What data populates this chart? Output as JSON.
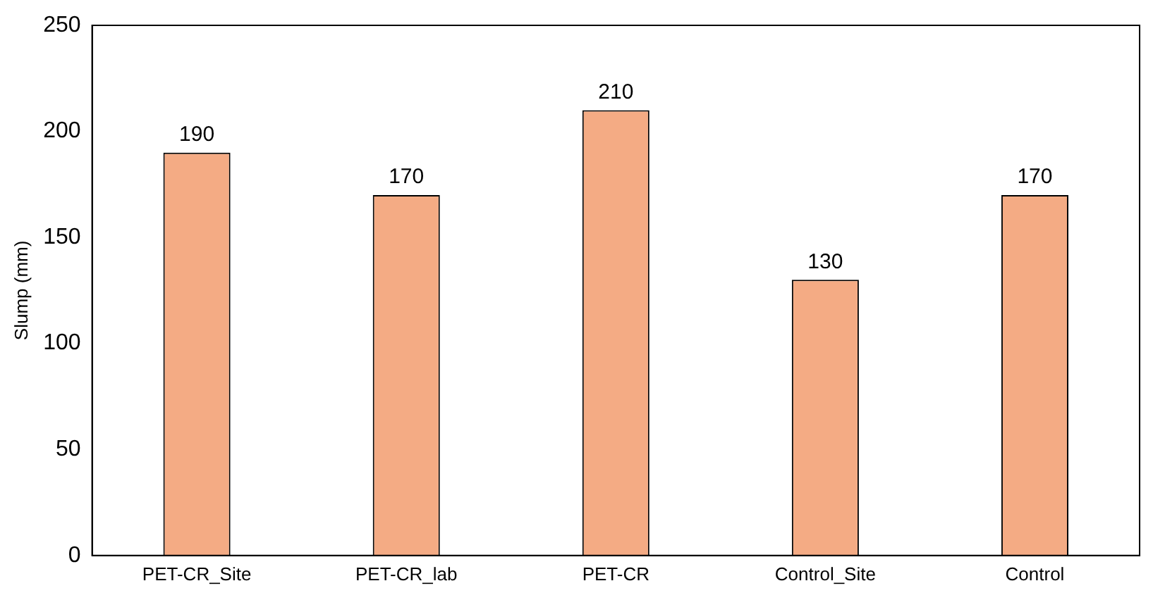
{
  "chart_data": {
    "type": "bar",
    "ylabel": "Slump (mm)",
    "categories": [
      "PET-CR_Site",
      "PET-CR_lab",
      "PET-CR",
      "Control_Site",
      "Control"
    ],
    "values": [
      190,
      170,
      210,
      130,
      170
    ],
    "color": "#f4ab84",
    "ylim": [
      0,
      250
    ],
    "yticks": [
      0,
      50,
      100,
      150,
      200,
      250
    ],
    "grid": false,
    "legend": false,
    "data_labels": true
  }
}
